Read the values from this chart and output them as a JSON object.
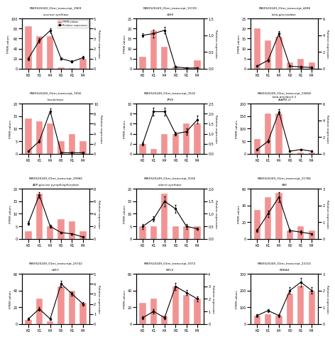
{
  "panels": [
    {
      "title": "MWXS20249_01mi_transcript_3969",
      "subtitle": "sucrose synthase",
      "fpkm": [
        85,
        65,
        65,
        3,
        1,
        20
      ],
      "rel_expr": [
        1.0,
        2.8,
        3.8,
        1.0,
        0.7,
        1.1
      ],
      "rel_err": [
        0.15,
        0.2,
        0.2,
        0.1,
        0.1,
        0.15
      ],
      "ylim_fpkm": [
        0,
        100
      ],
      "ylim_rel": [
        0,
        5
      ],
      "yticks_fpkm": [
        0,
        20,
        40,
        60,
        80,
        100
      ],
      "yticks_rel": [
        0,
        1,
        2,
        3,
        4,
        5
      ]
    },
    {
      "title": "MWXS20249_01mi_transcript_15729",
      "subtitle": "CBHI",
      "fpkm": [
        6,
        19,
        11,
        1,
        0.5,
        4
      ],
      "rel_expr": [
        1.0,
        1.05,
        1.15,
        0.05,
        0.02,
        0.02
      ],
      "rel_err": [
        0.05,
        0.12,
        0.1,
        0.02,
        0.01,
        0.01
      ],
      "ylim_fpkm": [
        0,
        25
      ],
      "ylim_rel": [
        0,
        1.5
      ],
      "yticks_fpkm": [
        0,
        5,
        10,
        15,
        20,
        25
      ],
      "yticks_rel": [
        0.0,
        0.5,
        1.0,
        1.5
      ]
    },
    {
      "title": "MWXS20249_01mi_transcript_4498",
      "subtitle": "beta-glucosidase",
      "fpkm": [
        20,
        14,
        16,
        3,
        5,
        3
      ],
      "rel_expr": [
        0.3,
        1.0,
        4.2,
        0.3,
        0.2,
        0.15
      ],
      "rel_err": [
        0.1,
        0.15,
        0.3,
        0.1,
        0.1,
        0.05
      ],
      "ylim_fpkm": [
        0,
        25
      ],
      "ylim_rel": [
        0,
        6
      ],
      "yticks_fpkm": [
        0,
        5,
        10,
        15,
        20,
        25
      ],
      "yticks_rel": [
        0,
        2,
        4,
        6
      ]
    },
    {
      "title": "MWXS20249_01mi_transcript_7656",
      "subtitle": "hexokinase",
      "fpkm": [
        14,
        13,
        12,
        5,
        8,
        5
      ],
      "rel_expr": [
        0.5,
        2.5,
        8.5,
        0.2,
        0.2,
        0.2
      ],
      "rel_err": [
        0.1,
        0.3,
        0.5,
        0.05,
        0.05,
        0.05
      ],
      "ylim_fpkm": [
        0,
        20
      ],
      "ylim_rel": [
        0,
        10
      ],
      "yticks_fpkm": [
        0,
        5,
        10,
        15,
        20
      ],
      "yticks_rel": [
        0,
        2,
        4,
        6,
        8,
        10
      ]
    },
    {
      "title": "MWXS20249_01mi_transcript_3102",
      "subtitle": "TPS5",
      "fpkm": [
        2,
        1,
        4,
        4,
        6,
        6
      ],
      "rel_expr": [
        0.5,
        2.1,
        2.1,
        1.0,
        1.1,
        1.7
      ],
      "rel_err": [
        0.1,
        0.2,
        0.2,
        0.1,
        0.15,
        0.2
      ],
      "ylim_fpkm": [
        0,
        10
      ],
      "ylim_rel": [
        0,
        2.5
      ],
      "yticks_fpkm": [
        0,
        2,
        4,
        6,
        8,
        10
      ],
      "yticks_rel": [
        0.0,
        0.5,
        1.0,
        1.5,
        2.0,
        2.5
      ]
    },
    {
      "title": "MWXS20249_01mi_transcript_22858",
      "subtitle": "beta-amylase3.1\n(BAM3.1)",
      "fpkm": [
        60,
        160,
        160,
        3,
        5,
        5
      ],
      "rel_expr": [
        0.5,
        1.5,
        5.0,
        0.3,
        0.5,
        0.3
      ],
      "rel_err": [
        0.1,
        0.2,
        0.3,
        0.1,
        0.1,
        0.05
      ],
      "ylim_fpkm": [
        0,
        200
      ],
      "ylim_rel": [
        0,
        6
      ],
      "yticks_fpkm": [
        0,
        50,
        100,
        150,
        200
      ],
      "yticks_rel": [
        0,
        2,
        4,
        6
      ]
    },
    {
      "title": "MWXS20249_01mi_transcript_20966",
      "subtitle": "ADP-glucose pyrophosphorylase",
      "fpkm": [
        3,
        18,
        5,
        8,
        7,
        3
      ],
      "rel_expr": [
        2.5,
        7.0,
        2.0,
        1.0,
        0.8,
        0.3
      ],
      "rel_err": [
        0.3,
        0.5,
        0.2,
        0.1,
        0.1,
        0.05
      ],
      "ylim_fpkm": [
        0,
        20
      ],
      "ylim_rel": [
        0,
        8
      ],
      "yticks_fpkm": [
        0,
        5,
        10,
        15,
        20
      ],
      "yticks_rel": [
        0,
        2,
        4,
        6,
        8
      ]
    },
    {
      "title": "MWXS20249_01mi_transcript_9316",
      "subtitle": "starch synthase",
      "fpkm": [
        5,
        5,
        18,
        5,
        5,
        5
      ],
      "rel_expr": [
        0.5,
        0.8,
        1.5,
        1.2,
        0.5,
        0.4
      ],
      "rel_err": [
        0.1,
        0.1,
        0.2,
        0.15,
        0.1,
        0.05
      ],
      "ylim_fpkm": [
        0,
        20
      ],
      "ylim_rel": [
        0,
        2
      ],
      "yticks_fpkm": [
        0,
        5,
        10,
        15,
        20
      ],
      "yticks_rel": [
        0.0,
        0.5,
        1.0,
        1.5,
        2.0
      ]
    },
    {
      "title": "MWXS20249_01mi_transcript_21784",
      "subtitle": "SBE",
      "fpkm": [
        35,
        50,
        55,
        10,
        15,
        10
      ],
      "rel_expr": [
        0.5,
        1.5,
        2.5,
        0.5,
        0.4,
        0.3
      ],
      "rel_err": [
        0.1,
        0.2,
        0.3,
        0.1,
        0.1,
        0.05
      ],
      "ylim_fpkm": [
        0,
        60
      ],
      "ylim_rel": [
        0,
        3
      ],
      "yticks_fpkm": [
        0,
        20,
        40,
        60
      ],
      "yticks_rel": [
        0,
        1,
        2,
        3
      ]
    },
    {
      "title": "MWXS20249_01mi_transcript_25742",
      "subtitle": "CBF3",
      "fpkm": [
        5,
        30,
        3,
        45,
        40,
        25
      ],
      "rel_expr": [
        0.5,
        1.5,
        0.5,
        4.0,
        3.0,
        2.0
      ],
      "rel_err": [
        0.1,
        0.2,
        0.1,
        0.3,
        0.2,
        0.2
      ],
      "ylim_fpkm": [
        0,
        60
      ],
      "ylim_rel": [
        0,
        5
      ],
      "yticks_fpkm": [
        0,
        20,
        40,
        60
      ],
      "yticks_rel": [
        0,
        1,
        2,
        3,
        4,
        5
      ]
    },
    {
      "title": "MWXS20249_01mi_transcript_5072",
      "subtitle": "MYC2",
      "fpkm": [
        25,
        30,
        10,
        45,
        35,
        30
      ],
      "rel_expr": [
        0.5,
        1.0,
        0.5,
        3.0,
        2.5,
        2.0
      ],
      "rel_err": [
        0.1,
        0.15,
        0.1,
        0.3,
        0.2,
        0.2
      ],
      "ylim_fpkm": [
        0,
        60
      ],
      "ylim_rel": [
        0,
        4
      ],
      "yticks_fpkm": [
        0,
        20,
        40,
        60
      ],
      "yticks_rel": [
        0,
        1,
        2,
        3,
        4
      ]
    },
    {
      "title": "MWXS20249_01mi_transcript_22110",
      "subtitle": "MYB44",
      "fpkm": [
        50,
        60,
        50,
        180,
        230,
        200
      ],
      "rel_expr": [
        0.5,
        0.8,
        0.5,
        2.0,
        2.5,
        2.0
      ],
      "rel_err": [
        0.1,
        0.1,
        0.1,
        0.2,
        0.25,
        0.2
      ],
      "ylim_fpkm": [
        0,
        300
      ],
      "ylim_rel": [
        0,
        3
      ],
      "yticks_fpkm": [
        0,
        100,
        200,
        300
      ],
      "yticks_rel": [
        0,
        1,
        2,
        3
      ]
    }
  ],
  "x_labels": [
    "K0",
    "K1",
    "K4",
    "R0",
    "R1",
    "R4"
  ],
  "bar_color": "#F08080",
  "line_color": "#000000",
  "bar_alpha": 0.85,
  "legend_fpkm": "FPKM values",
  "legend_rel": "Relative expression"
}
